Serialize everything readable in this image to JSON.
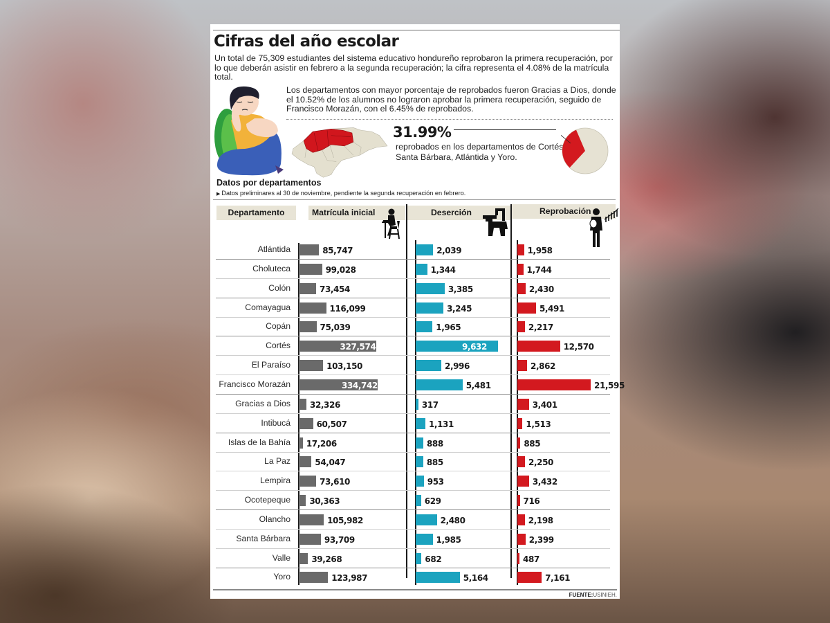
{
  "header": {
    "title": "Cifras del año escolar",
    "intro": "Un total de 75,309 estudiantes del sistema educativo hondureño reprobaron la primera recuperación, por lo que deberán asistir en febrero a la segunda recuperación; la cifra representa el 4.08% de la matrícula total.",
    "paragraph2": "Los departamentos con mayor porcentaje de reprobados fueron Gracias a Dios, donde el 10.52% de los alumnos no lograron aprobar la primera recuperación, seguido de Francisco Morazán, con el 6.45% de reprobados."
  },
  "highlight": {
    "percent": "31.99%",
    "description": "reprobados en los departamentos de Cortés, Santa Bárbara, Atlántida y Yoro.",
    "pie_share": 31.99
  },
  "section": {
    "title": "Datos por departamentos",
    "note": "Datos preliminares al 30 de noviembre, pendiente la segunda recuperación en febrero."
  },
  "columns": {
    "departamento": "Departamento",
    "matricula": "Matrícula inicial",
    "desercion": "Deserción",
    "reprobacion": "Reprobación"
  },
  "colors": {
    "matricula": "#6a6a6a",
    "desercion": "#1ba3bf",
    "reprobacion": "#d3191f",
    "header_bg": "#e8e4d6"
  },
  "source": {
    "label": "FUENTE:",
    "value": "USINIEH."
  },
  "chart_data": {
    "type": "bar",
    "title": "Cifras del año escolar — Datos por departamentos",
    "orientation": "horizontal",
    "categories": [
      "Atlántida",
      "Choluteca",
      "Colón",
      "Comayagua",
      "Copán",
      "Cortés",
      "El Paraíso",
      "Francisco Morazán",
      "Gracias a Dios",
      "Intibucá",
      "Islas de la Bahía",
      "La Paz",
      "Lempira",
      "Ocotepeque",
      "Olancho",
      "Santa Bárbara",
      "Valle",
      "Yoro"
    ],
    "series": [
      {
        "name": "Matrícula inicial",
        "color": "#6a6a6a",
        "values": [
          85747,
          99028,
          73454,
          116099,
          75039,
          327574,
          103150,
          334742,
          32326,
          60507,
          17206,
          54047,
          73610,
          30363,
          105982,
          93709,
          39268,
          123987
        ]
      },
      {
        "name": "Deserción",
        "color": "#1ba3bf",
        "values": [
          2039,
          1344,
          3385,
          3245,
          1965,
          9632,
          2996,
          5481,
          317,
          1131,
          888,
          885,
          953,
          629,
          2480,
          1985,
          682,
          5164
        ]
      },
      {
        "name": "Reprobación",
        "color": "#d3191f",
        "values": [
          1958,
          1744,
          2430,
          5491,
          2217,
          12570,
          2862,
          21595,
          3401,
          1513,
          885,
          2250,
          3432,
          716,
          2198,
          2399,
          487,
          7161
        ]
      }
    ],
    "labels": {
      "Matrícula inicial": [
        "85,747",
        "99,028",
        "73,454",
        "116,099",
        "75,039",
        "327,574",
        "103,150",
        "334,742",
        "32,326",
        "60,507",
        "17,206",
        "54,047",
        "73,610",
        "30,363",
        "105,982",
        "93,709",
        "39,268",
        "123,987"
      ],
      "Deserción": [
        "2,039",
        "1,344",
        "3,385",
        "3,245",
        "1,965",
        "9,632",
        "2,996",
        "5,481",
        "317",
        "1,131",
        "888",
        "885",
        "953",
        "629",
        "2,480",
        "1,985",
        "682",
        "5,164"
      ],
      "Reprobación": [
        "1,958",
        "1,744",
        "2,430",
        "5,491",
        "2,217",
        "12,570",
        "2,862",
        "21,595",
        "3,401",
        "1,513",
        "885",
        "2,250",
        "3,432",
        "716",
        "2,198",
        "2,399",
        "487",
        "7,161"
      ]
    },
    "grid": false,
    "legend": "column headers",
    "annotations": [
      "31.99% reprobados en los departamentos de Cortés, Santa Bárbara, Atlántida y Yoro.",
      "FUENTE: USINIEH."
    ]
  }
}
